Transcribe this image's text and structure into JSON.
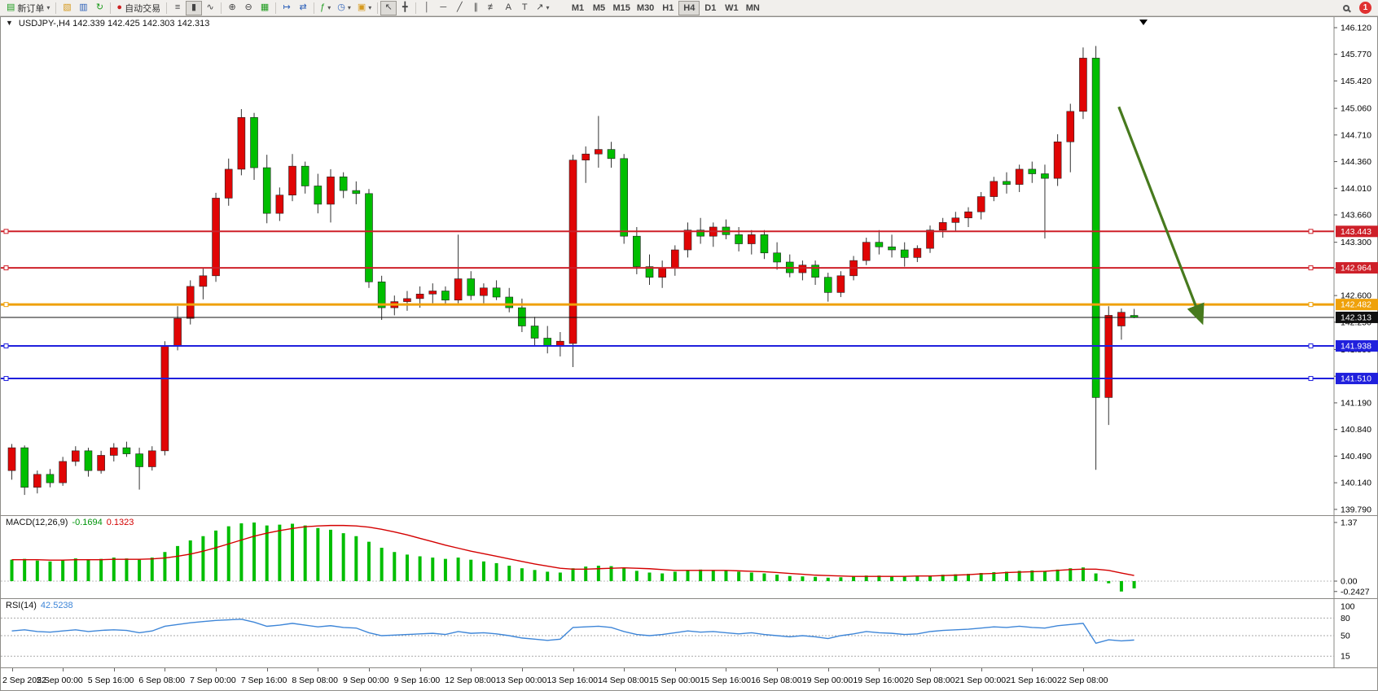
{
  "toolbar": {
    "new_order": "新订单",
    "autotrade": "自动交易",
    "timeframes": [
      "M1",
      "M5",
      "M15",
      "M30",
      "H1",
      "H4",
      "D1",
      "W1",
      "MN"
    ],
    "active_timeframe": "H4",
    "badge_count": "1",
    "icons": {
      "new_order": "▤",
      "dropdown": "▾",
      "profiles": "▧",
      "charts": "▥",
      "refresh": "↻",
      "autotrade": "●",
      "chart_bars": "≡",
      "chart_candles": "▮",
      "chart_line": "∿",
      "zoom_in": "⊕",
      "zoom_out": "⊖",
      "tile_windows": "▦",
      "auto_scroll": "↦",
      "chart_shift": "⇄",
      "indicators": "ƒ",
      "periods": "◷",
      "templates": "▣",
      "cursor": "↖",
      "crosshair": "╋",
      "vline": "│",
      "hline": "─",
      "trendline": "╱",
      "channel": "∥",
      "fibonacci": "≢",
      "text": "A",
      "label": "T",
      "arrows": "↗",
      "one_click": "▼"
    }
  },
  "chart": {
    "title_full": "USDJPY-,H4 142.339 142.425 142.303 142.313",
    "symbol": "USDJPY-",
    "period": "H4",
    "open": "142.339",
    "high": "142.425",
    "low": "142.303",
    "close": "142.313"
  },
  "chart_data": {
    "type": "candlestick",
    "symbol": "USDJPY-",
    "timeframe": "H4",
    "up_color": "#E00505",
    "down_color": "#00BE00",
    "price_axis_ticks": [
      "146.120",
      "145.770",
      "145.420",
      "145.060",
      "144.710",
      "144.360",
      "144.010",
      "143.660",
      "143.300",
      "142.950",
      "142.600",
      "142.250",
      "141.890",
      "141.540",
      "141.190",
      "140.840",
      "140.490",
      "140.140",
      "139.790"
    ],
    "hlines": [
      {
        "price": 143.443,
        "label": "143.443",
        "color": "#CE2029",
        "width": 2,
        "role": "resistance"
      },
      {
        "price": 142.964,
        "label": "142.964",
        "color": "#CE2029",
        "width": 2,
        "role": "resistance"
      },
      {
        "price": 142.482,
        "label": "142.482",
        "color": "#EFA10A",
        "width": 3,
        "role": "pivot"
      },
      {
        "price": 142.313,
        "label": "142.313",
        "color": "#101010",
        "width": 1,
        "role": "bid"
      },
      {
        "price": 141.938,
        "label": "141.938",
        "color": "#2020DD",
        "width": 2,
        "role": "support"
      },
      {
        "price": 141.51,
        "label": "141.510",
        "color": "#2020DD",
        "width": 2,
        "role": "support"
      }
    ],
    "arrow": {
      "color": "#477A1E",
      "from": {
        "index": 86.8,
        "price": 145.08
      },
      "to": {
        "index": 93.3,
        "price": 142.26
      }
    },
    "time_labels": [
      {
        "index": 0,
        "label": "2 Sep 2022"
      },
      {
        "index": 4,
        "label": "5 Sep 00:00"
      },
      {
        "index": 8,
        "label": "5 Sep 16:00"
      },
      {
        "index": 12,
        "label": "6 Sep 08:00"
      },
      {
        "index": 16,
        "label": "7 Sep 00:00"
      },
      {
        "index": 20,
        "label": "7 Sep 16:00"
      },
      {
        "index": 24,
        "label": "8 Sep 08:00"
      },
      {
        "index": 28,
        "label": "9 Sep 00:00"
      },
      {
        "index": 32,
        "label": "9 Sep 16:00"
      },
      {
        "index": 36,
        "label": "12 Sep 08:00"
      },
      {
        "index": 40,
        "label": "13 Sep 00:00"
      },
      {
        "index": 44,
        "label": "13 Sep 16:00"
      },
      {
        "index": 48,
        "label": "14 Sep 08:00"
      },
      {
        "index": 52,
        "label": "15 Sep 00:00"
      },
      {
        "index": 56,
        "label": "15 Sep 16:00"
      },
      {
        "index": 60,
        "label": "16 Sep 08:00"
      },
      {
        "index": 64,
        "label": "19 Sep 00:00"
      },
      {
        "index": 68,
        "label": "19 Sep 16:00"
      },
      {
        "index": 72,
        "label": "20 Sep 08:00"
      },
      {
        "index": 76,
        "label": "21 Sep 00:00"
      },
      {
        "index": 80,
        "label": "21 Sep 16:00"
      },
      {
        "index": 84,
        "label": "22 Sep 08:00"
      }
    ],
    "candles": [
      [
        140.3,
        140.65,
        140.18,
        140.6
      ],
      [
        140.6,
        140.63,
        139.98,
        140.08
      ],
      [
        140.08,
        140.3,
        140.0,
        140.25
      ],
      [
        140.25,
        140.32,
        140.08,
        140.14
      ],
      [
        140.14,
        140.48,
        140.1,
        140.42
      ],
      [
        140.42,
        140.62,
        140.36,
        140.56
      ],
      [
        140.56,
        140.6,
        140.22,
        140.3
      ],
      [
        140.3,
        140.56,
        140.26,
        140.5
      ],
      [
        140.5,
        140.66,
        140.42,
        140.6
      ],
      [
        140.6,
        140.68,
        140.48,
        140.52
      ],
      [
        140.52,
        140.6,
        140.05,
        140.35
      ],
      [
        140.35,
        140.62,
        140.3,
        140.56
      ],
      [
        140.56,
        142.0,
        140.5,
        141.94
      ],
      [
        141.94,
        142.46,
        141.88,
        142.3
      ],
      [
        142.3,
        142.8,
        142.22,
        142.72
      ],
      [
        142.72,
        142.97,
        142.55,
        142.86
      ],
      [
        142.86,
        143.95,
        142.78,
        143.88
      ],
      [
        143.88,
        144.4,
        143.78,
        144.26
      ],
      [
        144.26,
        145.05,
        144.18,
        144.94
      ],
      [
        144.94,
        145.0,
        144.12,
        144.28
      ],
      [
        144.28,
        144.45,
        143.55,
        143.68
      ],
      [
        143.68,
        144.02,
        143.58,
        143.92
      ],
      [
        143.92,
        144.46,
        143.84,
        144.3
      ],
      [
        144.3,
        144.36,
        143.94,
        144.04
      ],
      [
        144.04,
        144.2,
        143.68,
        143.8
      ],
      [
        143.8,
        144.26,
        143.56,
        144.16
      ],
      [
        144.16,
        144.22,
        143.88,
        143.98
      ],
      [
        143.98,
        144.1,
        143.8,
        143.94
      ],
      [
        143.94,
        144.0,
        142.7,
        142.78
      ],
      [
        142.78,
        142.86,
        142.28,
        142.44
      ],
      [
        142.44,
        142.6,
        142.34,
        142.52
      ],
      [
        142.52,
        142.66,
        142.4,
        142.56
      ],
      [
        142.56,
        142.72,
        142.44,
        142.62
      ],
      [
        142.62,
        142.76,
        142.5,
        142.66
      ],
      [
        142.66,
        142.72,
        142.48,
        142.54
      ],
      [
        142.54,
        143.4,
        142.5,
        142.82
      ],
      [
        142.82,
        142.92,
        142.54,
        142.6
      ],
      [
        142.6,
        142.76,
        142.5,
        142.7
      ],
      [
        142.7,
        142.8,
        142.54,
        142.58
      ],
      [
        142.58,
        142.7,
        142.38,
        142.44
      ],
      [
        142.44,
        142.56,
        142.12,
        142.2
      ],
      [
        142.2,
        142.32,
        141.94,
        142.04
      ],
      [
        142.04,
        142.2,
        141.84,
        141.94
      ],
      [
        141.94,
        142.12,
        141.8,
        142.0
      ],
      [
        141.97,
        144.45,
        141.66,
        144.38
      ],
      [
        144.38,
        144.56,
        144.08,
        144.46
      ],
      [
        144.46,
        144.96,
        144.28,
        144.52
      ],
      [
        144.52,
        144.62,
        144.28,
        144.4
      ],
      [
        144.4,
        144.46,
        143.28,
        143.38
      ],
      [
        143.38,
        143.5,
        142.88,
        142.98
      ],
      [
        142.98,
        143.14,
        142.74,
        142.84
      ],
      [
        142.84,
        143.06,
        142.7,
        142.96
      ],
      [
        142.96,
        143.26,
        142.86,
        143.2
      ],
      [
        143.2,
        143.56,
        143.1,
        143.46
      ],
      [
        143.46,
        143.62,
        143.28,
        143.38
      ],
      [
        143.38,
        143.56,
        143.24,
        143.5
      ],
      [
        143.5,
        143.6,
        143.34,
        143.4
      ],
      [
        143.4,
        143.5,
        143.18,
        143.28
      ],
      [
        143.28,
        143.46,
        143.14,
        143.4
      ],
      [
        143.4,
        143.46,
        143.08,
        143.16
      ],
      [
        143.16,
        143.3,
        142.94,
        143.04
      ],
      [
        143.04,
        143.14,
        142.84,
        142.9
      ],
      [
        142.9,
        143.06,
        142.8,
        143.0
      ],
      [
        143.0,
        143.06,
        142.74,
        142.84
      ],
      [
        142.84,
        142.9,
        142.52,
        142.64
      ],
      [
        142.64,
        142.92,
        142.58,
        142.86
      ],
      [
        142.86,
        143.12,
        142.8,
        143.06
      ],
      [
        143.06,
        143.36,
        143.0,
        143.3
      ],
      [
        143.3,
        143.46,
        143.14,
        143.24
      ],
      [
        143.24,
        143.4,
        143.1,
        143.2
      ],
      [
        143.2,
        143.3,
        142.98,
        143.1
      ],
      [
        143.1,
        143.26,
        143.04,
        143.22
      ],
      [
        143.22,
        143.52,
        143.16,
        143.46
      ],
      [
        143.46,
        143.62,
        143.36,
        143.56
      ],
      [
        143.56,
        143.7,
        143.44,
        143.62
      ],
      [
        143.62,
        143.76,
        143.5,
        143.7
      ],
      [
        143.7,
        143.96,
        143.6,
        143.9
      ],
      [
        143.9,
        144.16,
        143.84,
        144.1
      ],
      [
        144.1,
        144.22,
        143.94,
        144.06
      ],
      [
        144.06,
        144.32,
        143.96,
        144.26
      ],
      [
        144.26,
        144.36,
        144.08,
        144.2
      ],
      [
        144.2,
        144.32,
        143.35,
        144.14
      ],
      [
        144.14,
        144.72,
        144.04,
        144.62
      ],
      [
        144.62,
        145.12,
        144.22,
        145.02
      ],
      [
        145.02,
        145.86,
        144.92,
        145.72
      ],
      [
        145.72,
        145.88,
        140.31,
        141.26
      ],
      [
        141.26,
        142.46,
        140.9,
        142.34
      ],
      [
        142.2,
        142.43,
        142.02,
        142.38
      ],
      [
        142.339,
        142.425,
        142.303,
        142.313
      ]
    ],
    "macd": {
      "name": "MACD(12,26,9)",
      "value_main": "-0.1694",
      "value_signal": "0.1323",
      "color": "#00BE00",
      "signal_color": "#D40000",
      "axis": [
        "1.37",
        "0.00",
        "-0.2427"
      ],
      "histogram": [
        0.5,
        0.52,
        0.48,
        0.46,
        0.5,
        0.53,
        0.5,
        0.52,
        0.55,
        0.53,
        0.5,
        0.55,
        0.68,
        0.82,
        0.95,
        1.05,
        1.18,
        1.28,
        1.35,
        1.37,
        1.3,
        1.32,
        1.34,
        1.3,
        1.24,
        1.2,
        1.12,
        1.05,
        0.92,
        0.78,
        0.68,
        0.62,
        0.58,
        0.55,
        0.52,
        0.55,
        0.5,
        0.46,
        0.42,
        0.36,
        0.3,
        0.26,
        0.22,
        0.2,
        0.3,
        0.34,
        0.36,
        0.35,
        0.3,
        0.24,
        0.2,
        0.18,
        0.22,
        0.26,
        0.27,
        0.26,
        0.24,
        0.22,
        0.2,
        0.18,
        0.15,
        0.12,
        0.11,
        0.1,
        0.08,
        0.09,
        0.11,
        0.13,
        0.13,
        0.12,
        0.11,
        0.11,
        0.13,
        0.15,
        0.16,
        0.17,
        0.19,
        0.21,
        0.22,
        0.24,
        0.25,
        0.24,
        0.27,
        0.3,
        0.32,
        0.18,
        -0.05,
        -0.2427,
        -0.1694
      ],
      "signal": [
        0.5,
        0.5,
        0.5,
        0.49,
        0.49,
        0.5,
        0.5,
        0.5,
        0.51,
        0.51,
        0.51,
        0.52,
        0.54,
        0.58,
        0.63,
        0.7,
        0.78,
        0.87,
        0.96,
        1.05,
        1.12,
        1.18,
        1.23,
        1.27,
        1.29,
        1.3,
        1.3,
        1.29,
        1.26,
        1.21,
        1.15,
        1.08,
        1.0,
        0.92,
        0.84,
        0.77,
        0.7,
        0.64,
        0.58,
        0.52,
        0.46,
        0.4,
        0.35,
        0.3,
        0.28,
        0.28,
        0.29,
        0.3,
        0.31,
        0.3,
        0.29,
        0.27,
        0.25,
        0.25,
        0.25,
        0.25,
        0.25,
        0.24,
        0.23,
        0.22,
        0.2,
        0.18,
        0.16,
        0.14,
        0.13,
        0.12,
        0.11,
        0.11,
        0.11,
        0.11,
        0.11,
        0.12,
        0.12,
        0.13,
        0.14,
        0.15,
        0.17,
        0.18,
        0.2,
        0.21,
        0.22,
        0.23,
        0.25,
        0.27,
        0.28,
        0.28,
        0.25,
        0.19,
        0.1323
      ]
    },
    "rsi": {
      "name": "RSI(14)",
      "value": "42.5238",
      "color": "#3E86D8",
      "levels": [
        "100",
        "80",
        "50",
        "15"
      ],
      "values": [
        58,
        60,
        57,
        56,
        58,
        60,
        57,
        59,
        60,
        59,
        55,
        58,
        66,
        69,
        72,
        74,
        76,
        77,
        78,
        73,
        66,
        68,
        71,
        68,
        65,
        67,
        64,
        63,
        55,
        50,
        51,
        52,
        53,
        54,
        52,
        57,
        54,
        55,
        53,
        50,
        46,
        44,
        42,
        44,
        64,
        65,
        66,
        64,
        57,
        52,
        50,
        52,
        55,
        58,
        56,
        57,
        55,
        53,
        55,
        52,
        50,
        48,
        50,
        48,
        45,
        50,
        53,
        57,
        55,
        54,
        52,
        53,
        57,
        59,
        60,
        61,
        63,
        65,
        64,
        66,
        64,
        63,
        67,
        69,
        71,
        37,
        43,
        41,
        42.52
      ]
    }
  }
}
